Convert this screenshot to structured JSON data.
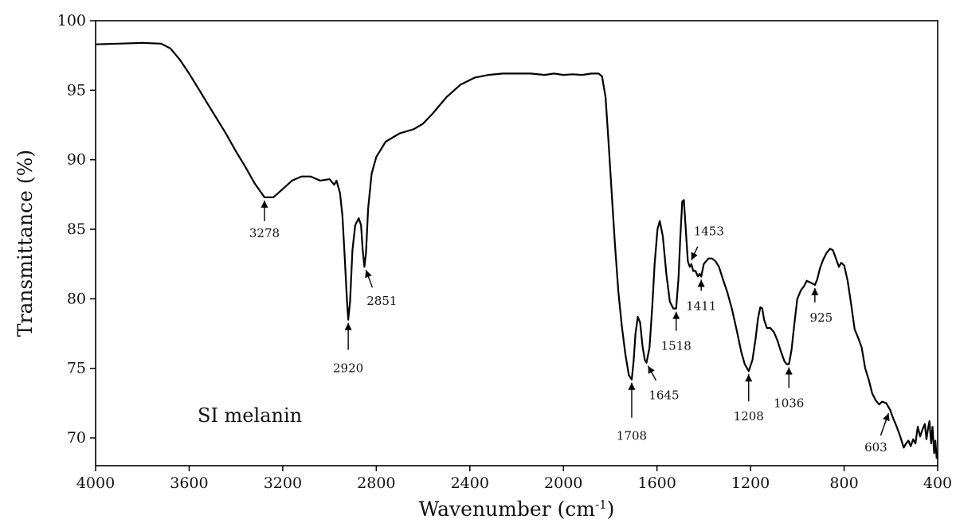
{
  "chart_data": {
    "type": "line",
    "title": "",
    "xlabel": "Wavenumber (cm",
    "xlabel_sup": "-1",
    "xlabel_close": ")",
    "ylabel": "Transmittance (%)",
    "xlim": [
      4000,
      400
    ],
    "ylim": [
      68,
      100
    ],
    "x_reversed": true,
    "grid": false,
    "x_ticks": [
      4000,
      3600,
      3200,
      2800,
      2400,
      2000,
      1600,
      1200,
      800,
      400
    ],
    "y_ticks": [
      70,
      75,
      80,
      85,
      90,
      95,
      100
    ],
    "series": [
      {
        "name": "SI melanin",
        "color": "#000000",
        "points": [
          [
            4000,
            98.3
          ],
          [
            3900,
            98.35
          ],
          [
            3800,
            98.4
          ],
          [
            3720,
            98.35
          ],
          [
            3680,
            98.0
          ],
          [
            3640,
            97.2
          ],
          [
            3600,
            96.2
          ],
          [
            3560,
            95.1
          ],
          [
            3520,
            94.0
          ],
          [
            3480,
            92.9
          ],
          [
            3440,
            91.8
          ],
          [
            3400,
            90.6
          ],
          [
            3360,
            89.5
          ],
          [
            3320,
            88.3
          ],
          [
            3278,
            87.3
          ],
          [
            3240,
            87.3
          ],
          [
            3200,
            87.9
          ],
          [
            3160,
            88.5
          ],
          [
            3120,
            88.8
          ],
          [
            3080,
            88.8
          ],
          [
            3040,
            88.5
          ],
          [
            3000,
            88.6
          ],
          [
            2980,
            88.2
          ],
          [
            2970,
            88.5
          ],
          [
            2955,
            87.6
          ],
          [
            2945,
            86.0
          ],
          [
            2935,
            83.0
          ],
          [
            2925,
            79.8
          ],
          [
            2920,
            78.5
          ],
          [
            2912,
            79.8
          ],
          [
            2902,
            83.5
          ],
          [
            2890,
            85.3
          ],
          [
            2875,
            85.8
          ],
          [
            2865,
            85.3
          ],
          [
            2858,
            83.5
          ],
          [
            2851,
            82.3
          ],
          [
            2844,
            83.3
          ],
          [
            2835,
            86.5
          ],
          [
            2820,
            89.0
          ],
          [
            2800,
            90.2
          ],
          [
            2760,
            91.3
          ],
          [
            2700,
            91.9
          ],
          [
            2640,
            92.2
          ],
          [
            2600,
            92.6
          ],
          [
            2560,
            93.3
          ],
          [
            2500,
            94.5
          ],
          [
            2440,
            95.4
          ],
          [
            2380,
            95.9
          ],
          [
            2320,
            96.1
          ],
          [
            2260,
            96.2
          ],
          [
            2200,
            96.2
          ],
          [
            2140,
            96.2
          ],
          [
            2080,
            96.1
          ],
          [
            2040,
            96.2
          ],
          [
            2000,
            96.1
          ],
          [
            1960,
            96.15
          ],
          [
            1920,
            96.1
          ],
          [
            1880,
            96.2
          ],
          [
            1850,
            96.2
          ],
          [
            1835,
            96.0
          ],
          [
            1820,
            94.5
          ],
          [
            1808,
            91.5
          ],
          [
            1795,
            88.0
          ],
          [
            1780,
            84.0
          ],
          [
            1765,
            80.5
          ],
          [
            1750,
            78.0
          ],
          [
            1735,
            76.0
          ],
          [
            1720,
            74.5
          ],
          [
            1708,
            74.2
          ],
          [
            1700,
            75.5
          ],
          [
            1692,
            77.5
          ],
          [
            1682,
            78.7
          ],
          [
            1672,
            78.3
          ],
          [
            1662,
            76.6
          ],
          [
            1652,
            75.6
          ],
          [
            1645,
            75.4
          ],
          [
            1632,
            76.5
          ],
          [
            1620,
            79.5
          ],
          [
            1610,
            82.5
          ],
          [
            1598,
            85.0
          ],
          [
            1588,
            85.6
          ],
          [
            1575,
            84.5
          ],
          [
            1560,
            81.8
          ],
          [
            1545,
            79.8
          ],
          [
            1530,
            79.3
          ],
          [
            1518,
            79.3
          ],
          [
            1508,
            81.5
          ],
          [
            1500,
            84.5
          ],
          [
            1492,
            87.0
          ],
          [
            1485,
            87.1
          ],
          [
            1477,
            85.0
          ],
          [
            1468,
            82.7
          ],
          [
            1460,
            82.3
          ],
          [
            1453,
            82.5
          ],
          [
            1445,
            82.0
          ],
          [
            1435,
            82.0
          ],
          [
            1425,
            81.6
          ],
          [
            1418,
            81.8
          ],
          [
            1411,
            81.6
          ],
          [
            1400,
            82.5
          ],
          [
            1390,
            82.7
          ],
          [
            1380,
            82.9
          ],
          [
            1365,
            82.9
          ],
          [
            1350,
            82.7
          ],
          [
            1335,
            82.3
          ],
          [
            1320,
            81.5
          ],
          [
            1300,
            80.5
          ],
          [
            1280,
            79.3
          ],
          [
            1260,
            77.8
          ],
          [
            1240,
            76.2
          ],
          [
            1225,
            75.3
          ],
          [
            1208,
            74.8
          ],
          [
            1192,
            75.6
          ],
          [
            1178,
            77.2
          ],
          [
            1168,
            78.6
          ],
          [
            1158,
            79.4
          ],
          [
            1150,
            79.3
          ],
          [
            1142,
            78.5
          ],
          [
            1130,
            77.9
          ],
          [
            1115,
            77.9
          ],
          [
            1100,
            77.6
          ],
          [
            1085,
            77.0
          ],
          [
            1070,
            76.2
          ],
          [
            1055,
            75.5
          ],
          [
            1045,
            75.3
          ],
          [
            1036,
            75.3
          ],
          [
            1025,
            76.3
          ],
          [
            1012,
            78.3
          ],
          [
            1000,
            80.0
          ],
          [
            985,
            80.6
          ],
          [
            972,
            80.9
          ],
          [
            960,
            81.3
          ],
          [
            948,
            81.2
          ],
          [
            935,
            81.1
          ],
          [
            925,
            81.0
          ],
          [
            915,
            81.4
          ],
          [
            903,
            82.2
          ],
          [
            890,
            82.8
          ],
          [
            875,
            83.3
          ],
          [
            860,
            83.6
          ],
          [
            848,
            83.5
          ],
          [
            835,
            82.9
          ],
          [
            822,
            82.3
          ],
          [
            812,
            82.6
          ],
          [
            800,
            82.4
          ],
          [
            785,
            81.3
          ],
          [
            770,
            79.6
          ],
          [
            755,
            77.8
          ],
          [
            740,
            77.2
          ],
          [
            725,
            76.5
          ],
          [
            710,
            75.0
          ],
          [
            695,
            74.2
          ],
          [
            680,
            73.2
          ],
          [
            665,
            72.7
          ],
          [
            650,
            72.4
          ],
          [
            638,
            72.6
          ],
          [
            620,
            72.5
          ],
          [
            603,
            72.0
          ],
          [
            590,
            71.4
          ],
          [
            575,
            70.8
          ],
          [
            560,
            70.1
          ],
          [
            545,
            69.3
          ],
          [
            535,
            69.6
          ],
          [
            525,
            69.8
          ],
          [
            515,
            69.4
          ],
          [
            505,
            69.9
          ],
          [
            495,
            69.6
          ],
          [
            485,
            70.8
          ],
          [
            475,
            70.1
          ],
          [
            465,
            70.6
          ],
          [
            455,
            71.0
          ],
          [
            448,
            69.9
          ],
          [
            440,
            70.8
          ],
          [
            435,
            71.2
          ],
          [
            428,
            69.6
          ],
          [
            422,
            70.8
          ],
          [
            415,
            68.9
          ],
          [
            410,
            69.8
          ],
          [
            404,
            68.5
          ]
        ]
      }
    ],
    "annotations": [
      {
        "label": "3278",
        "peak_x": 3278,
        "peak_y": 87.3
      },
      {
        "label": "2920",
        "peak_x": 2920,
        "peak_y": 78.5
      },
      {
        "label": "2851",
        "peak_x": 2851,
        "peak_y": 82.3
      },
      {
        "label": "1708",
        "peak_x": 1708,
        "peak_y": 74.2
      },
      {
        "label": "1645",
        "peak_x": 1645,
        "peak_y": 75.4
      },
      {
        "label": "1518",
        "peak_x": 1518,
        "peak_y": 79.3
      },
      {
        "label": "1453",
        "peak_x": 1453,
        "peak_y": 82.5
      },
      {
        "label": "1411",
        "peak_x": 1411,
        "peak_y": 81.6
      },
      {
        "label": "1208",
        "peak_x": 1208,
        "peak_y": 74.8
      },
      {
        "label": "1036",
        "peak_x": 1036,
        "peak_y": 75.3
      },
      {
        "label": "925",
        "peak_x": 925,
        "peak_y": 81.0
      },
      {
        "label": "603",
        "peak_x": 603,
        "peak_y": 72.0
      }
    ]
  }
}
